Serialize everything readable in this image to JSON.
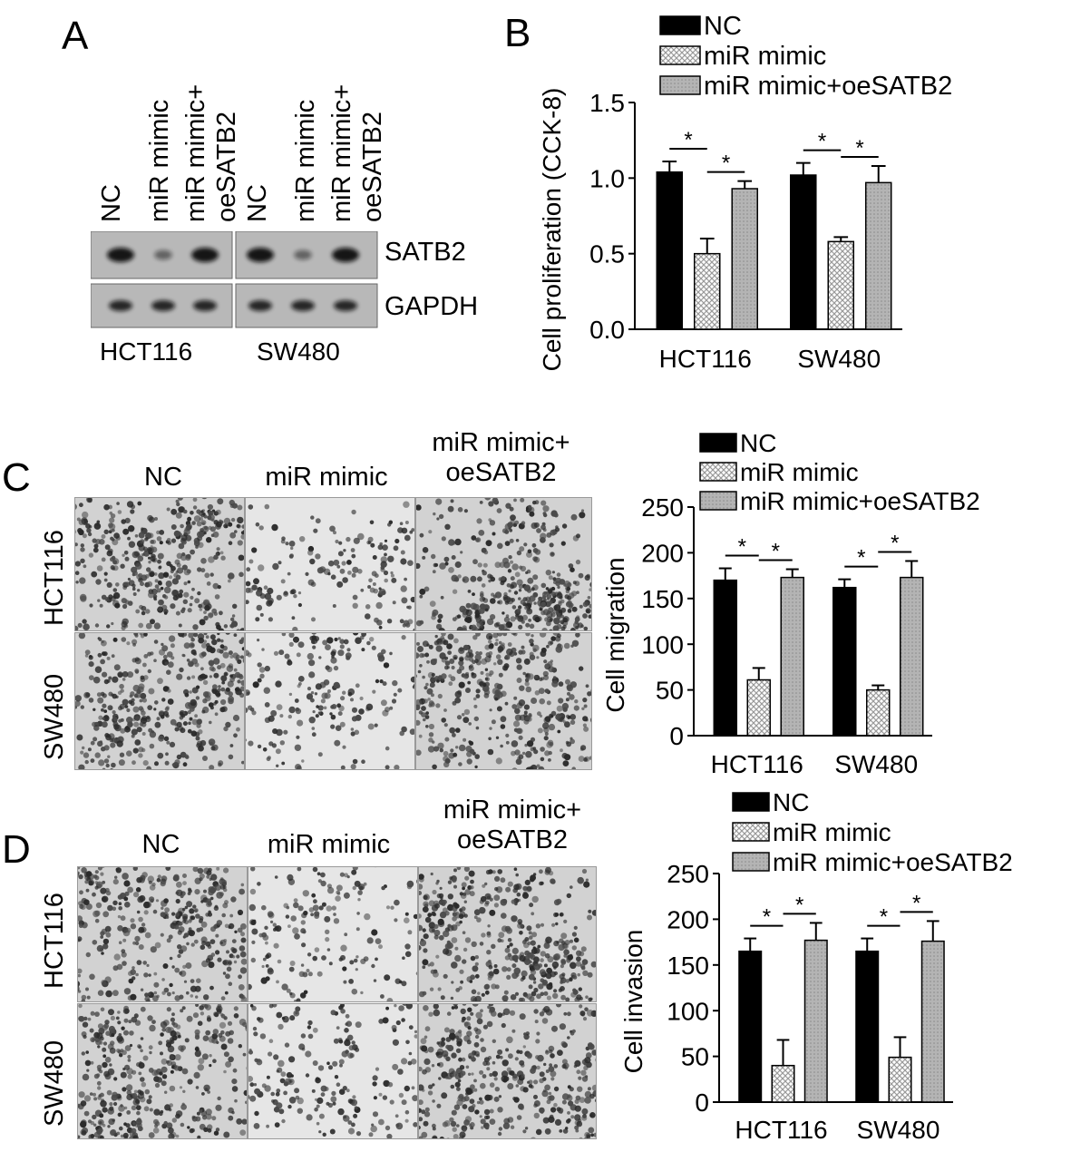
{
  "figure": {
    "panels": {
      "A": "A",
      "B": "B",
      "C": "C",
      "D": "D"
    }
  },
  "blot": {
    "lanes": [
      "NC",
      "miR mimic",
      "miR mimic+\noeSATB2",
      "NC",
      "miR mimic",
      "miR mimic+\noeSATB2"
    ],
    "lane_line1": [
      "NC",
      "miR mimic",
      "miR mimic+",
      "NC",
      "miR mimic",
      "miR mimic+"
    ],
    "lane_line2": [
      "",
      "",
      "oeSATB2",
      "",
      "",
      "oeSATB2"
    ],
    "proteins": [
      "SATB2",
      "GAPDH"
    ],
    "cell_lines": [
      "HCT116",
      "SW480"
    ],
    "satb2_intensity": [
      1.0,
      0.35,
      1.0,
      1.0,
      0.35,
      1.0
    ],
    "gapdh_intensity": [
      1.0,
      1.0,
      1.0,
      1.0,
      1.0,
      1.0
    ]
  },
  "images": {
    "C": {
      "col_headers": [
        "NC",
        "miR mimic",
        "miR mimic+\noeSATB2"
      ],
      "col_line1": [
        "NC",
        "miR mimic",
        "miR mimic+"
      ],
      "col_line2": [
        "",
        "",
        "oeSATB2"
      ],
      "row_labels": [
        "HCT116",
        "SW480"
      ]
    },
    "D": {
      "col_line1": [
        "NC",
        "miR mimic",
        "miR mimic+"
      ],
      "col_line2": [
        "",
        "",
        "oeSATB2"
      ],
      "row_labels": [
        "HCT116",
        "SW480"
      ]
    },
    "density": [
      [
        0.85,
        0.35,
        0.85
      ],
      [
        0.85,
        0.4,
        0.85
      ]
    ]
  },
  "colors": {
    "nc": "#000000",
    "mimic_fill": "#ffffff",
    "mimic_pattern": "#9a9a9a",
    "oe_fill": "#b4b4b4",
    "oe_pattern": "#8a8a8a"
  },
  "chart_data": [
    {
      "panel": "B",
      "type": "bar",
      "categories": [
        "HCT116",
        "SW480"
      ],
      "series": [
        {
          "name": "NC",
          "values": [
            1.04,
            1.02
          ],
          "errors": [
            0.07,
            0.08
          ]
        },
        {
          "name": "miR mimic",
          "values": [
            0.5,
            0.58
          ],
          "errors": [
            0.1,
            0.03
          ]
        },
        {
          "name": "miR mimic+oeSATB2",
          "values": [
            0.93,
            0.97
          ],
          "errors": [
            0.05,
            0.11
          ]
        }
      ],
      "ylabel": "Cell proliferation (CCK-8)",
      "ylim": [
        0,
        1.5
      ],
      "yticks": [
        "0.0",
        "0.5",
        "1.0",
        "1.5"
      ],
      "significance": "*",
      "legend_position": "top"
    },
    {
      "panel": "C",
      "type": "bar",
      "categories": [
        "HCT116",
        "SW480"
      ],
      "series": [
        {
          "name": "NC",
          "values": [
            170,
            162
          ],
          "errors": [
            13,
            9
          ]
        },
        {
          "name": "miR mimic",
          "values": [
            61,
            50
          ],
          "errors": [
            13,
            5
          ]
        },
        {
          "name": "miR mimic+oeSATB2",
          "values": [
            173,
            173
          ],
          "errors": [
            9,
            18
          ]
        }
      ],
      "ylabel": "Cell migration",
      "ylim": [
        0,
        250
      ],
      "yticks": [
        "0",
        "50",
        "100",
        "150",
        "200",
        "250"
      ],
      "significance": "*",
      "legend_position": "top"
    },
    {
      "panel": "D",
      "type": "bar",
      "categories": [
        "HCT116",
        "SW480"
      ],
      "series": [
        {
          "name": "NC",
          "values": [
            165,
            165
          ],
          "errors": [
            14,
            14
          ]
        },
        {
          "name": "miR mimic",
          "values": [
            40,
            49
          ],
          "errors": [
            28,
            22
          ]
        },
        {
          "name": "miR mimic+oeSATB2",
          "values": [
            177,
            176
          ],
          "errors": [
            19,
            22
          ]
        }
      ],
      "ylabel": "Cell invasion",
      "ylim": [
        0,
        250
      ],
      "yticks": [
        "0",
        "50",
        "100",
        "150",
        "200",
        "250"
      ],
      "significance": "*",
      "legend_position": "top"
    }
  ]
}
